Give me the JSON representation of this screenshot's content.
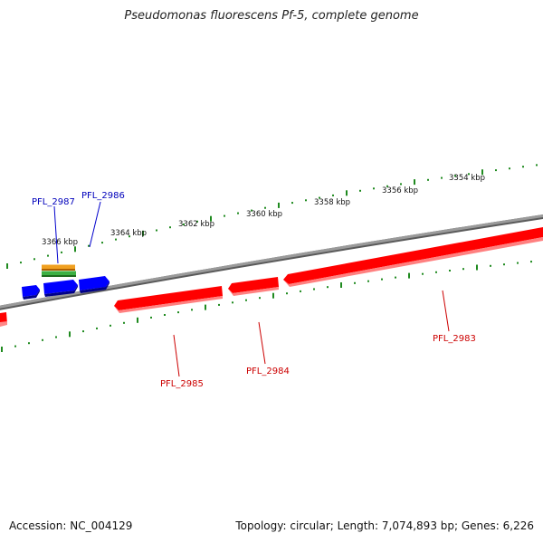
{
  "title": "Pseudomonas fluorescens Pf-5, complete genome",
  "footer": {
    "accession": "Accession: NC_004129",
    "info": "Topology: circular; Length: 7,074,893 bp; Genes: 6,226"
  },
  "colors": {
    "backbone": "#808080",
    "tick": "#1f8a1f",
    "forward_gene": "#0000ff",
    "reverse_gene": "#ff0000",
    "forward_label": "#0000bb",
    "reverse_label": "#cc0000",
    "feature_orange": "#f0a020",
    "feature_green": "#3cb043"
  },
  "ruler": {
    "labels": [
      "3366 kbp",
      "3364 kbp",
      "3362 kbp",
      "3360 kbp",
      "3358 kbp",
      "3356 kbp",
      "3354 kbp"
    ]
  },
  "genes": {
    "forward": [
      {
        "label": "PFL_2987"
      },
      {
        "label": "PFL_2986"
      }
    ],
    "reverse": [
      {
        "label": "PFL_2985"
      },
      {
        "label": "PFL_2984"
      },
      {
        "label": "PFL_2983"
      }
    ]
  }
}
